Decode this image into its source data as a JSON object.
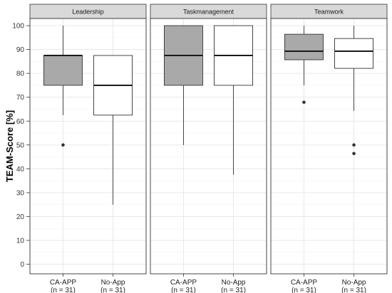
{
  "chart_data": {
    "type": "boxplot",
    "ylabel": "TEAM-Score [%]",
    "ylim": [
      -4,
      103
    ],
    "yticks": [
      0,
      10,
      20,
      30,
      40,
      50,
      60,
      70,
      80,
      90,
      100
    ],
    "groups": [
      {
        "label": "CA-APP",
        "sublabel": "(n = 31)",
        "fill": "#a9a9a9"
      },
      {
        "label": "No-App",
        "sublabel": "(n = 31)",
        "fill": "#ffffff"
      }
    ],
    "panels": [
      {
        "title": "Leadership",
        "boxes": [
          {
            "group": "CA-APP",
            "whisker_low": 62.5,
            "q1": 75,
            "median": 87.5,
            "q3": 87.5,
            "whisker_high": 100,
            "outliers": [
              50
            ]
          },
          {
            "group": "No-App",
            "whisker_low": 25,
            "q1": 62.5,
            "median": 75,
            "q3": 87.5,
            "whisker_high": 87.5,
            "outliers": []
          }
        ]
      },
      {
        "title": "Taskmanagement",
        "boxes": [
          {
            "group": "CA-APP",
            "whisker_low": 50,
            "q1": 75,
            "median": 87.5,
            "q3": 100,
            "whisker_high": 100,
            "outliers": []
          },
          {
            "group": "No-App",
            "whisker_low": 37.5,
            "q1": 75,
            "median": 87.5,
            "q3": 100,
            "whisker_high": 100,
            "outliers": []
          }
        ]
      },
      {
        "title": "Teamwork",
        "boxes": [
          {
            "group": "CA-APP",
            "whisker_low": 75,
            "q1": 85.7,
            "median": 89.3,
            "q3": 96.4,
            "whisker_high": 100,
            "outliers": [
              67.9
            ]
          },
          {
            "group": "No-App",
            "whisker_low": 64.3,
            "q1": 82.1,
            "median": 89.3,
            "q3": 94.6,
            "whisker_high": 100,
            "outliers": [
              50,
              46.4
            ]
          }
        ]
      }
    ]
  }
}
